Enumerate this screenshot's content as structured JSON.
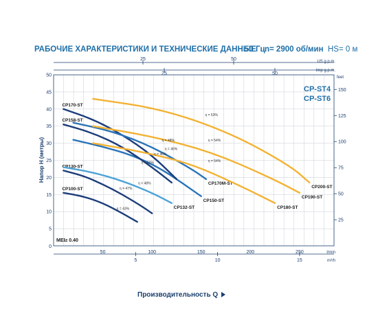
{
  "header": {
    "title": "РАБОЧИЕ ХАРАКТЕРИСТИКИ И ТЕХНИЧЕСКИЕ ДАННЫЕ",
    "frequency": "50 Гц",
    "speed": "n= 2900 об/мин",
    "hs": "HS= 0 м"
  },
  "colors": {
    "dark": "#1c3d7a",
    "mid": "#2b74b8",
    "light": "#4da3d6",
    "orange": "#f3b233",
    "axis": "#1a3e6e",
    "grid": "#c7ccd4"
  },
  "chart_data": {
    "type": "line",
    "xlabel": "Производительность Q",
    "ylabel": "Напор H (метры)",
    "x_unit_bottom": "l/min",
    "x_unit_m3h": "m³/h",
    "x_unit_us": "US g.p.m.",
    "x_unit_imp": "Imp g.p.m.",
    "y_unit_right": "feet",
    "xlim": [
      0,
      285
    ],
    "ylim": [
      0,
      50
    ],
    "grid": true,
    "x_ticks_lmin": [
      "50",
      "100",
      "150",
      "200",
      "250"
    ],
    "x_ticks_m3h": [
      "5",
      "10",
      "15"
    ],
    "x_ticks_us": [
      "25",
      "50"
    ],
    "x_ticks_imp": [
      "25",
      "50"
    ],
    "y_ticks": [
      "5",
      "10",
      "15",
      "20",
      "25",
      "30",
      "35",
      "40",
      "45",
      "50"
    ],
    "y_ticks_feet": [
      "25",
      "50",
      "75",
      "100",
      "125",
      "150"
    ],
    "series_label": "CP-ST4\nCP-ST6",
    "mei_label": "MEI≥ 0.40",
    "series": [
      {
        "name": "CP100-ST",
        "tone": "dark",
        "x": [
          10,
          30,
          50,
          70,
          85
        ],
        "y": [
          15.5,
          14.5,
          12.5,
          9.5,
          7.0
        ]
      },
      {
        "name": "CP130-ST",
        "tone": "dark",
        "x": [
          10,
          30,
          50,
          70,
          90,
          100
        ],
        "y": [
          22.0,
          20.5,
          18.0,
          15.0,
          11.5,
          9.5
        ]
      },
      {
        "name": "CP132-ST",
        "tone": "light",
        "x": [
          10,
          40,
          70,
          100,
          120
        ],
        "y": [
          23.0,
          21.5,
          19.0,
          15.5,
          12.5
        ]
      },
      {
        "name": "CP150-ST",
        "tone": "mid",
        "x": [
          20,
          50,
          80,
          110,
          150
        ],
        "y": [
          31.0,
          29.0,
          26.5,
          22.5,
          14.5
        ]
      },
      {
        "name": "CP158-ST",
        "tone": "dark",
        "x": [
          10,
          40,
          70,
          100,
          120
        ],
        "y": [
          35.5,
          33.0,
          29.0,
          23.0,
          18.5
        ]
      },
      {
        "name": "CP170-ST",
        "tone": "dark",
        "x": [
          10,
          40,
          70,
          100,
          125
        ],
        "y": [
          40.0,
          37.0,
          32.5,
          26.5,
          19.5
        ]
      },
      {
        "name": "CP170M-ST",
        "tone": "mid",
        "x": [
          20,
          60,
          100,
          140,
          155
        ],
        "y": [
          36.0,
          33.5,
          29.0,
          22.5,
          19.5
        ]
      },
      {
        "name": "CP180-ST",
        "tone": "orange",
        "x": [
          40,
          90,
          140,
          190,
          225
        ],
        "y": [
          30.0,
          27.5,
          24.0,
          17.5,
          12.5
        ]
      },
      {
        "name": "CP190-ST",
        "tone": "orange",
        "x": [
          40,
          100,
          160,
          220,
          250
        ],
        "y": [
          35.0,
          32.0,
          27.5,
          20.0,
          15.5
        ]
      },
      {
        "name": "CP200-ST",
        "tone": "orange",
        "x": [
          40,
          110,
          180,
          240,
          260
        ],
        "y": [
          43.0,
          40.0,
          33.0,
          23.5,
          18.5
        ]
      }
    ],
    "efficiency_labels": [
      {
        "text": "η = 43%",
        "x": 64,
        "y": 10.5
      },
      {
        "text": "η = 47%",
        "x": 67,
        "y": 16.5
      },
      {
        "text": "η = 48%",
        "x": 86,
        "y": 18.0
      },
      {
        "text": "η = 50%",
        "x": 89,
        "y": 24.0
      },
      {
        "text": "η = 46%",
        "x": 102,
        "y": 26.5
      },
      {
        "text": "η = 46%",
        "x": 113,
        "y": 28.0
      },
      {
        "text": "η = 48%",
        "x": 110,
        "y": 30.5
      },
      {
        "text": "η = 54%",
        "x": 157,
        "y": 24.5
      },
      {
        "text": "η = 54%",
        "x": 157,
        "y": 30.5
      },
      {
        "text": "η = 53%",
        "x": 154,
        "y": 38.0
      }
    ]
  }
}
